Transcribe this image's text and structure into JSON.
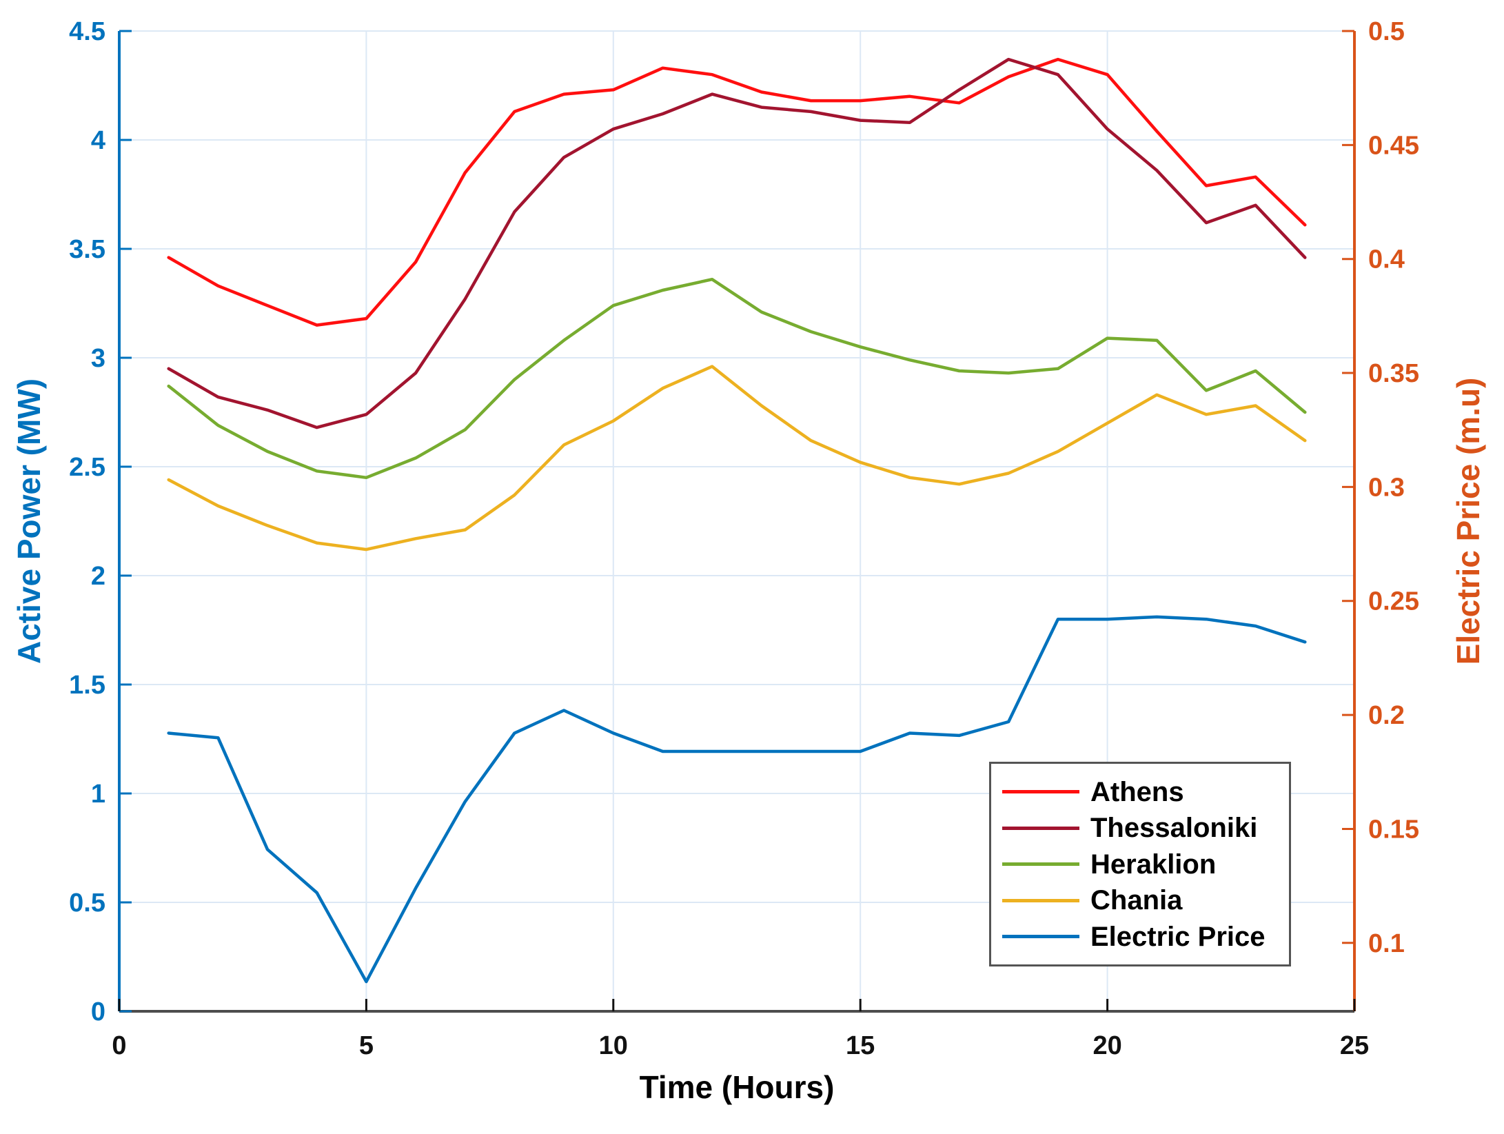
{
  "chart_data": {
    "type": "line",
    "x": [
      1,
      2,
      3,
      4,
      5,
      6,
      7,
      8,
      9,
      10,
      11,
      12,
      13,
      14,
      15,
      16,
      17,
      18,
      19,
      20,
      21,
      22,
      23,
      24
    ],
    "xlabel": "Time (Hours)",
    "xlim": [
      0,
      25
    ],
    "x_ticks": [
      0,
      5,
      10,
      15,
      20,
      25
    ],
    "x_tick_labels": [
      "0",
      "5",
      "10",
      "15",
      "20",
      "25"
    ],
    "grid": true,
    "grid_color": "#dce8f5",
    "left_axis": {
      "label": "Active Power (MW)",
      "color": "#0072BD",
      "lim": [
        0,
        4.5
      ],
      "ticks": [
        0,
        0.5,
        1,
        1.5,
        2,
        2.5,
        3,
        3.5,
        4,
        4.5
      ],
      "tick_labels": [
        "0",
        "0.5",
        "1",
        "1.5",
        "2",
        "2.5",
        "3",
        "3.5",
        "4",
        "4.5"
      ]
    },
    "right_axis": {
      "label": "Electric Price (m.u)",
      "color": "#D95319",
      "lim": [
        0.07,
        0.5
      ],
      "ticks": [
        0.1,
        0.15,
        0.2,
        0.25,
        0.3,
        0.35,
        0.4,
        0.45,
        0.5
      ],
      "tick_labels": [
        "0.1",
        "0.15",
        "0.2",
        "0.25",
        "0.3",
        "0.35",
        "0.4",
        "0.45",
        "0.5"
      ]
    },
    "x_axis_color": "#4d4d4d",
    "series": [
      {
        "name": "Athens",
        "axis": "left",
        "color": "#ff0f0f",
        "values": [
          3.46,
          3.33,
          3.24,
          3.15,
          3.18,
          3.44,
          3.85,
          4.13,
          4.21,
          4.23,
          4.33,
          4.3,
          4.22,
          4.18,
          4.18,
          4.2,
          4.17,
          4.29,
          4.37,
          4.3,
          4.04,
          3.79,
          3.83,
          3.61
        ]
      },
      {
        "name": "Thessaloniki",
        "axis": "left",
        "color": "#A2142F",
        "values": [
          2.95,
          2.82,
          2.76,
          2.68,
          2.74,
          2.93,
          3.27,
          3.67,
          3.92,
          4.05,
          4.12,
          4.21,
          4.15,
          4.13,
          4.09,
          4.08,
          4.23,
          4.37,
          4.3,
          4.05,
          3.86,
          3.62,
          3.7,
          3.46
        ]
      },
      {
        "name": "Heraklion",
        "axis": "left",
        "color": "#77AC30",
        "values": [
          2.87,
          2.69,
          2.57,
          2.48,
          2.45,
          2.54,
          2.67,
          2.9,
          3.08,
          3.24,
          3.31,
          3.36,
          3.21,
          3.12,
          3.05,
          2.99,
          2.94,
          2.93,
          2.95,
          3.09,
          3.08,
          2.85,
          2.94,
          2.75
        ]
      },
      {
        "name": "Chania",
        "axis": "left",
        "color": "#EDB120",
        "values": [
          2.44,
          2.32,
          2.23,
          2.15,
          2.12,
          2.17,
          2.21,
          2.37,
          2.6,
          2.71,
          2.86,
          2.96,
          2.78,
          2.62,
          2.52,
          2.45,
          2.42,
          2.47,
          2.57,
          2.7,
          2.83,
          2.74,
          2.78,
          2.62
        ]
      },
      {
        "name": "Electric Price",
        "axis": "right",
        "color": "#0072BD",
        "values": [
          0.192,
          0.19,
          0.141,
          0.122,
          0.083,
          0.124,
          0.162,
          0.192,
          0.202,
          0.192,
          0.184,
          0.184,
          0.184,
          0.184,
          0.184,
          0.192,
          0.191,
          0.197,
          0.242,
          0.242,
          0.243,
          0.242,
          0.239,
          0.232
        ]
      }
    ],
    "legend": {
      "position": "inside lower right",
      "entries": [
        "Athens",
        "Thessaloniki",
        "Heraklion",
        "Chania",
        "Electric Price"
      ],
      "border_color": "#545454"
    }
  }
}
